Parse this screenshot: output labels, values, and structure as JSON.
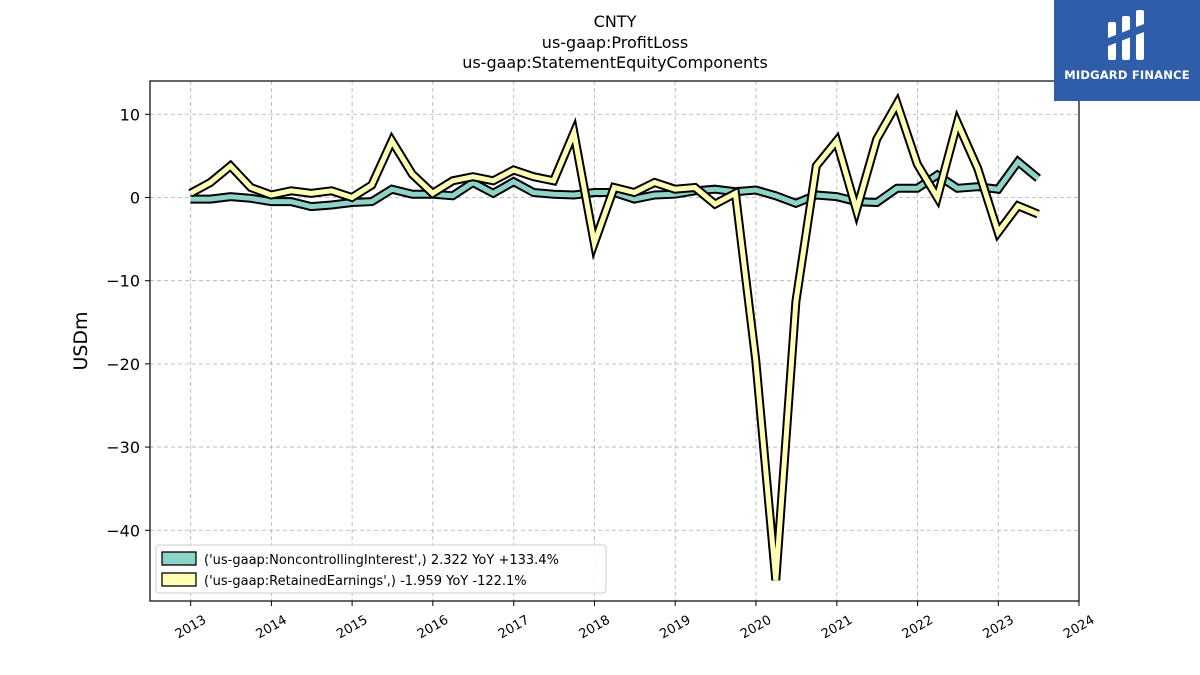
{
  "logo": {
    "text": "MIDGARD FINANCE",
    "bg_color": "#2f5daa"
  },
  "chart_data": {
    "type": "line",
    "title_lines": [
      "CNTY",
      "us-gaap:ProfitLoss",
      "us-gaap:StatementEquityComponents"
    ],
    "ylabel": "USDm",
    "xlabel": "",
    "ylim": [
      -48.5,
      14
    ],
    "xlim": [
      "2012-07-01",
      "2024-01-01"
    ],
    "yticks": [
      -40,
      -30,
      -20,
      -10,
      0,
      10
    ],
    "xticks": [
      "2013",
      "2014",
      "2015",
      "2016",
      "2017",
      "2018",
      "2019",
      "2020",
      "2021",
      "2022",
      "2023",
      "2024"
    ],
    "grid": true,
    "legend_position": "lower-left",
    "x": [
      "2012-12-31",
      "2013-03-31",
      "2013-06-30",
      "2013-09-30",
      "2013-12-31",
      "2014-03-31",
      "2014-06-30",
      "2014-09-30",
      "2014-12-31",
      "2015-03-31",
      "2015-06-30",
      "2015-09-30",
      "2015-12-31",
      "2016-03-31",
      "2016-06-30",
      "2016-09-30",
      "2016-12-31",
      "2017-03-31",
      "2017-06-30",
      "2017-09-30",
      "2017-12-31",
      "2018-03-31",
      "2018-06-30",
      "2018-09-30",
      "2018-12-31",
      "2019-03-31",
      "2019-06-30",
      "2019-09-30",
      "2019-12-31",
      "2020-03-31",
      "2020-06-30",
      "2020-09-30",
      "2020-12-31",
      "2021-03-31",
      "2021-06-30",
      "2021-09-30",
      "2021-12-31",
      "2022-03-31",
      "2022-06-30",
      "2022-09-30",
      "2022-12-31",
      "2023-03-31",
      "2023-06-30"
    ],
    "series": [
      {
        "name": "('us-gaap:NoncontrollingInterest',) 2.322 YoY +133.4%",
        "color": "#8dd3c7",
        "values": [
          -0.2,
          -0.2,
          0.1,
          -0.1,
          -0.5,
          -0.5,
          -1.1,
          -0.9,
          -0.6,
          -0.5,
          1.0,
          0.4,
          0.4,
          0.2,
          1.8,
          0.5,
          1.9,
          0.6,
          0.4,
          0.3,
          0.6,
          0.6,
          -0.2,
          0.3,
          0.4,
          0.8,
          1.0,
          0.7,
          0.9,
          0.2,
          -0.7,
          0.3,
          0.1,
          -0.5,
          -0.6,
          1.1,
          1.1,
          2.7,
          1.1,
          1.3,
          1.0,
          4.3,
          2.3
        ]
      },
      {
        "name": "('us-gaap:RetainedEarnings',) -1.959 YoY -122.1%",
        "color": "#ffffb3",
        "values": [
          0.5,
          1.8,
          3.8,
          1.2,
          0.3,
          0.8,
          0.5,
          0.8,
          0.0,
          1.5,
          6.8,
          2.8,
          0.5,
          2.0,
          2.5,
          2.0,
          3.3,
          2.5,
          2.0,
          7.8,
          -5.5,
          1.2,
          0.6,
          1.8,
          1.0,
          1.2,
          -0.8,
          0.5,
          -19.5,
          -46.0,
          -12.5,
          3.8,
          6.8,
          -1.5,
          7.0,
          11.3,
          4.0,
          0.0,
          9.0,
          3.5,
          -4.2,
          -1.0,
          -2.0
        ]
      }
    ]
  }
}
